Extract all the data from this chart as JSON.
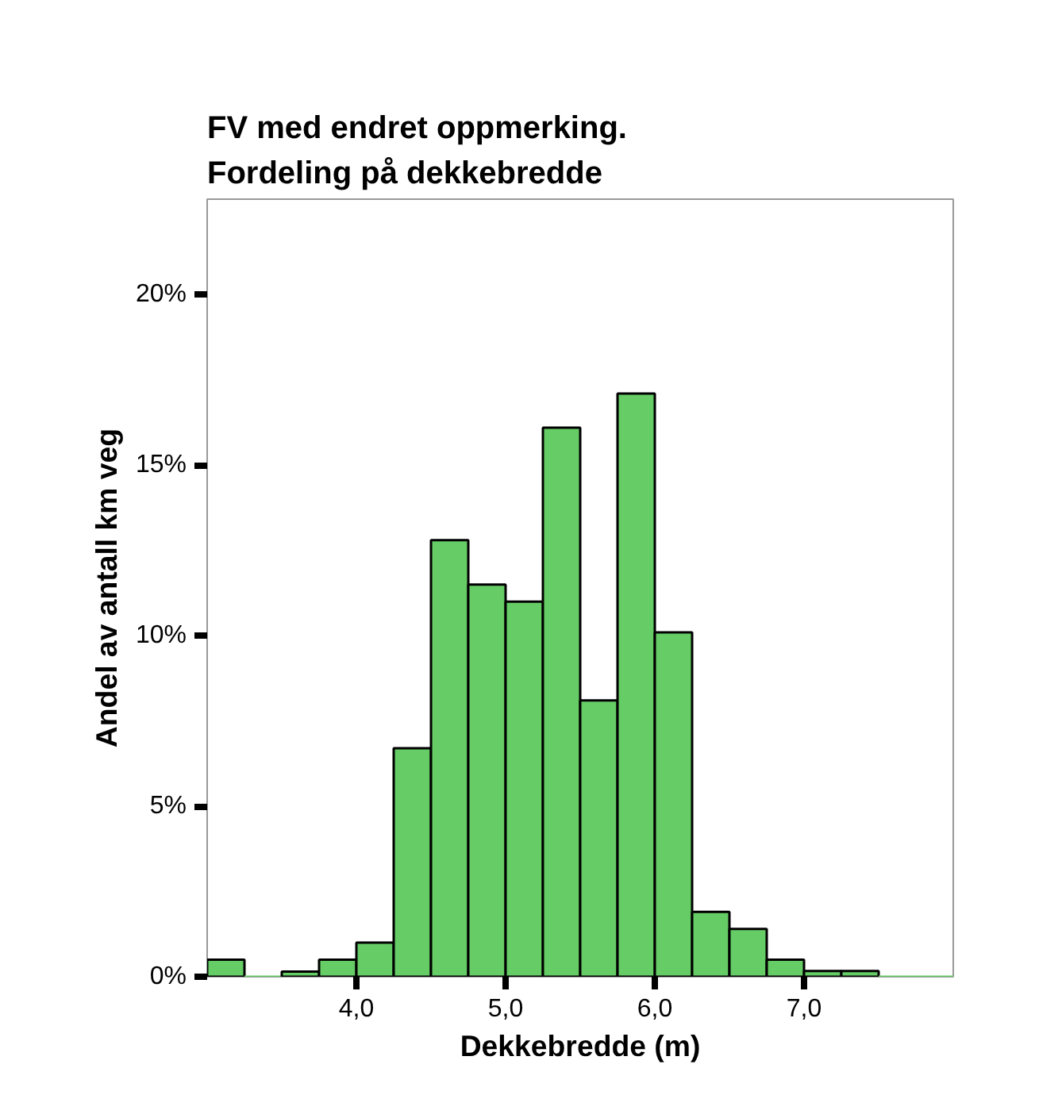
{
  "chart_data": {
    "type": "histogram",
    "title": "FV med endret oppmerking.\nFordeling på dekkebredde",
    "xlabel": "Dekkebredde (m)",
    "ylabel": "Andel av antall km veg",
    "bins": [
      3.0,
      3.25,
      3.5,
      3.75,
      4.0,
      4.25,
      4.5,
      4.75,
      5.0,
      5.25,
      5.5,
      5.75,
      6.0,
      6.25,
      6.5,
      6.75,
      7.0,
      7.25,
      7.5,
      7.75,
      8.0
    ],
    "values": [
      0.5,
      0,
      0.15,
      0.5,
      1.0,
      6.7,
      12.8,
      11.5,
      11.0,
      16.1,
      8.1,
      17.1,
      10.1,
      1.9,
      1.4,
      0.5,
      0.17,
      0.17,
      0,
      0
    ],
    "color": "#66cc66",
    "xlim": [
      3.0,
      8.0
    ],
    "xticks": [
      {
        "value": 4,
        "label": "4,0"
      },
      {
        "value": 5,
        "label": "5,0"
      },
      {
        "value": 6,
        "label": "6,0"
      },
      {
        "value": 7,
        "label": "7,0"
      }
    ],
    "ylim": [
      0,
      22.8
    ],
    "yticks": [
      {
        "value": 0,
        "label": "0%"
      },
      {
        "value": 5,
        "label": "5%"
      },
      {
        "value": 10,
        "label": "10%"
      },
      {
        "value": 15,
        "label": "15%"
      },
      {
        "value": 20,
        "label": "20%"
      }
    ],
    "grid": false
  }
}
